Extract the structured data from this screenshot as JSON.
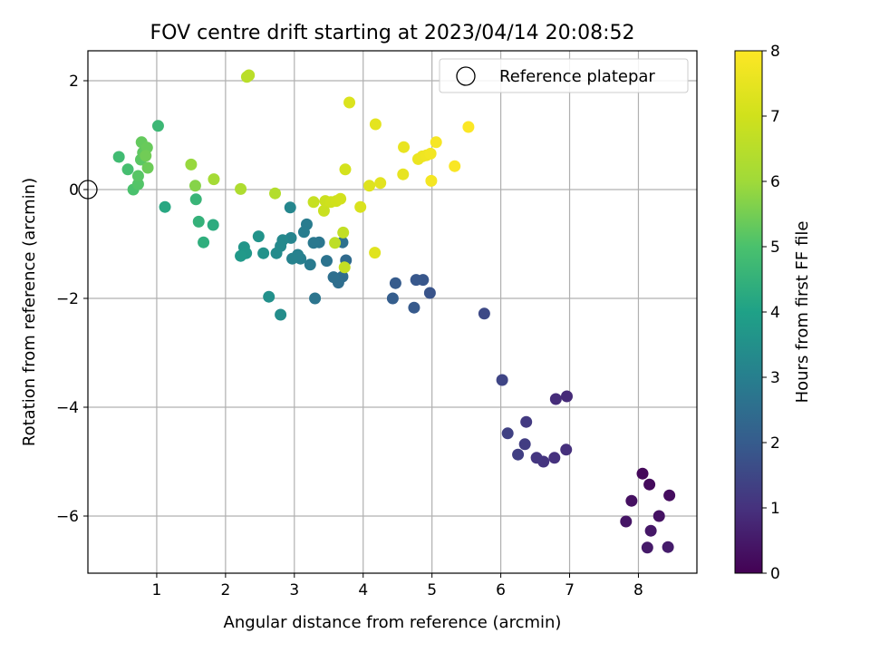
{
  "chart_data": {
    "type": "scatter",
    "title": "FOV centre drift starting at 2023/04/14 20:08:52",
    "xlabel": "Angular distance from reference (arcmin)",
    "ylabel": "Rotation from reference (arcmin)",
    "xlim": [
      0,
      8.85
    ],
    "ylim": [
      -7.05,
      2.55
    ],
    "xticks": [
      "1",
      "2",
      "3",
      "4",
      "5",
      "6",
      "7",
      "8"
    ],
    "yticks": [
      "2",
      "0",
      "−2",
      "−4",
      "−6"
    ],
    "grid": true,
    "legend": {
      "position": "top-right",
      "entries": [
        "Reference platepar"
      ]
    },
    "reference_point": {
      "x": 0,
      "y": 0
    },
    "colorbar": {
      "label": "Hours from first FF file",
      "range": [
        0,
        8
      ],
      "ticks": [
        "0",
        "1",
        "2",
        "3",
        "4",
        "5",
        "6",
        "7",
        "8"
      ],
      "colormap": "viridis"
    },
    "series": [
      {
        "points": [
          {
            "x": 8.06,
            "y": -5.22,
            "t": 0.15
          },
          {
            "x": 8.16,
            "y": -5.42,
            "t": 0.2
          },
          {
            "x": 8.45,
            "y": -5.62,
            "t": 0.25
          },
          {
            "x": 7.9,
            "y": -5.72,
            "t": 0.3
          },
          {
            "x": 8.3,
            "y": -6.0,
            "t": 0.35
          },
          {
            "x": 7.82,
            "y": -6.1,
            "t": 0.4
          },
          {
            "x": 8.18,
            "y": -6.27,
            "t": 0.45
          },
          {
            "x": 8.13,
            "y": -6.58,
            "t": 0.5
          },
          {
            "x": 8.43,
            "y": -6.57,
            "t": 0.55
          },
          {
            "x": 6.96,
            "y": -3.8,
            "t": 0.85
          },
          {
            "x": 6.8,
            "y": -3.85,
            "t": 0.9
          },
          {
            "x": 6.95,
            "y": -4.78,
            "t": 0.95
          },
          {
            "x": 6.78,
            "y": -4.93,
            "t": 1.0
          },
          {
            "x": 6.62,
            "y": -5.0,
            "t": 1.05
          },
          {
            "x": 6.52,
            "y": -4.93,
            "t": 1.1
          },
          {
            "x": 6.37,
            "y": -4.27,
            "t": 1.2
          },
          {
            "x": 6.35,
            "y": -4.68,
            "t": 1.25
          },
          {
            "x": 6.25,
            "y": -4.87,
            "t": 1.3
          },
          {
            "x": 6.1,
            "y": -4.48,
            "t": 1.35
          },
          {
            "x": 6.02,
            "y": -3.5,
            "t": 1.45
          },
          {
            "x": 5.76,
            "y": -2.28,
            "t": 1.55
          },
          {
            "x": 4.97,
            "y": -1.9,
            "t": 1.8
          },
          {
            "x": 4.87,
            "y": -1.66,
            "t": 1.85
          },
          {
            "x": 4.77,
            "y": -1.66,
            "t": 1.9
          },
          {
            "x": 4.74,
            "y": -2.17,
            "t": 1.95
          },
          {
            "x": 4.47,
            "y": -1.72,
            "t": 2.0
          },
          {
            "x": 4.43,
            "y": -2.0,
            "t": 2.05
          },
          {
            "x": 3.75,
            "y": -1.3,
            "t": 2.4
          },
          {
            "x": 3.7,
            "y": -1.6,
            "t": 2.45
          },
          {
            "x": 3.64,
            "y": -1.71,
            "t": 2.5
          },
          {
            "x": 3.57,
            "y": -1.61,
            "t": 2.55
          },
          {
            "x": 3.7,
            "y": -0.97,
            "t": 2.6
          },
          {
            "x": 3.47,
            "y": -1.31,
            "t": 2.65
          },
          {
            "x": 3.3,
            "y": -2.0,
            "t": 2.7
          },
          {
            "x": 3.36,
            "y": -0.97,
            "t": 2.75
          },
          {
            "x": 3.28,
            "y": -0.98,
            "t": 2.8
          },
          {
            "x": 3.23,
            "y": -1.38,
            "t": 2.85
          },
          {
            "x": 3.18,
            "y": -0.64,
            "t": 2.9
          },
          {
            "x": 3.14,
            "y": -0.78,
            "t": 2.95
          },
          {
            "x": 3.09,
            "y": -1.27,
            "t": 3.0
          },
          {
            "x": 3.05,
            "y": -1.2,
            "t": 3.05
          },
          {
            "x": 2.97,
            "y": -1.27,
            "t": 3.1
          },
          {
            "x": 2.95,
            "y": -0.89,
            "t": 3.15
          },
          {
            "x": 2.94,
            "y": -0.33,
            "t": 3.2
          },
          {
            "x": 2.83,
            "y": -0.93,
            "t": 3.25
          },
          {
            "x": 2.8,
            "y": -1.04,
            "t": 3.3
          },
          {
            "x": 2.74,
            "y": -1.17,
            "t": 3.35
          },
          {
            "x": 2.8,
            "y": -2.3,
            "t": 3.4
          },
          {
            "x": 2.63,
            "y": -1.97,
            "t": 3.5
          },
          {
            "x": 2.55,
            "y": -1.17,
            "t": 3.55
          },
          {
            "x": 2.48,
            "y": -0.86,
            "t": 3.6
          },
          {
            "x": 2.27,
            "y": -1.06,
            "t": 3.65
          },
          {
            "x": 2.3,
            "y": -1.17,
            "t": 3.7
          },
          {
            "x": 2.22,
            "y": -1.22,
            "t": 3.75
          },
          {
            "x": 1.12,
            "y": -0.32,
            "t": 4.2
          },
          {
            "x": 1.82,
            "y": -0.65,
            "t": 4.3
          },
          {
            "x": 1.68,
            "y": -0.97,
            "t": 4.4
          },
          {
            "x": 1.61,
            "y": -0.59,
            "t": 4.5
          },
          {
            "x": 1.57,
            "y": -0.18,
            "t": 4.6
          },
          {
            "x": 1.02,
            "y": 1.17,
            "t": 4.7
          },
          {
            "x": 0.45,
            "y": 0.6,
            "t": 4.8
          },
          {
            "x": 0.58,
            "y": 0.37,
            "t": 4.9
          },
          {
            "x": 0.66,
            "y": 0.0,
            "t": 5.0
          },
          {
            "x": 0.73,
            "y": 0.1,
            "t": 5.1
          },
          {
            "x": 0.73,
            "y": 0.25,
            "t": 5.15
          },
          {
            "x": 0.77,
            "y": 0.55,
            "t": 5.2
          },
          {
            "x": 0.8,
            "y": 0.68,
            "t": 5.25
          },
          {
            "x": 0.78,
            "y": 0.87,
            "t": 5.3
          },
          {
            "x": 0.86,
            "y": 0.77,
            "t": 5.35
          },
          {
            "x": 0.87,
            "y": 0.4,
            "t": 5.4
          },
          {
            "x": 0.84,
            "y": 0.62,
            "t": 5.45
          },
          {
            "x": 1.56,
            "y": 0.07,
            "t": 5.7
          },
          {
            "x": 1.5,
            "y": 0.46,
            "t": 5.9
          },
          {
            "x": 1.83,
            "y": 0.19,
            "t": 6.1
          },
          {
            "x": 2.22,
            "y": 0.01,
            "t": 6.3
          },
          {
            "x": 2.72,
            "y": -0.07,
            "t": 6.4
          },
          {
            "x": 2.31,
            "y": 2.07,
            "t": 6.5
          },
          {
            "x": 2.34,
            "y": 2.1,
            "t": 6.55
          },
          {
            "x": 3.59,
            "y": -0.98,
            "t": 6.6
          },
          {
            "x": 3.71,
            "y": -0.79,
            "t": 6.7
          },
          {
            "x": 3.73,
            "y": -1.43,
            "t": 6.75
          },
          {
            "x": 3.28,
            "y": -0.23,
            "t": 6.8
          },
          {
            "x": 3.43,
            "y": -0.39,
            "t": 6.85
          },
          {
            "x": 3.45,
            "y": -0.21,
            "t": 6.9
          },
          {
            "x": 3.53,
            "y": -0.23,
            "t": 6.95
          },
          {
            "x": 3.61,
            "y": -0.21,
            "t": 7.0
          },
          {
            "x": 3.67,
            "y": -0.17,
            "t": 7.05
          },
          {
            "x": 3.74,
            "y": 0.37,
            "t": 7.1
          },
          {
            "x": 3.96,
            "y": -0.32,
            "t": 7.2
          },
          {
            "x": 3.8,
            "y": 1.6,
            "t": 7.25
          },
          {
            "x": 4.09,
            "y": 0.07,
            "t": 7.3
          },
          {
            "x": 4.17,
            "y": -1.16,
            "t": 7.35
          },
          {
            "x": 4.25,
            "y": 0.12,
            "t": 7.4
          },
          {
            "x": 4.18,
            "y": 1.2,
            "t": 7.45
          },
          {
            "x": 4.58,
            "y": 0.28,
            "t": 7.5
          },
          {
            "x": 4.59,
            "y": 0.78,
            "t": 7.55
          },
          {
            "x": 4.8,
            "y": 0.56,
            "t": 7.6
          },
          {
            "x": 4.86,
            "y": 0.61,
            "t": 7.65
          },
          {
            "x": 4.92,
            "y": 0.63,
            "t": 7.7
          },
          {
            "x": 4.98,
            "y": 0.66,
            "t": 7.75
          },
          {
            "x": 4.99,
            "y": 0.16,
            "t": 7.8
          },
          {
            "x": 5.06,
            "y": 0.87,
            "t": 7.85
          },
          {
            "x": 5.33,
            "y": 0.43,
            "t": 7.9
          },
          {
            "x": 5.53,
            "y": 1.15,
            "t": 7.95
          }
        ]
      }
    ]
  }
}
